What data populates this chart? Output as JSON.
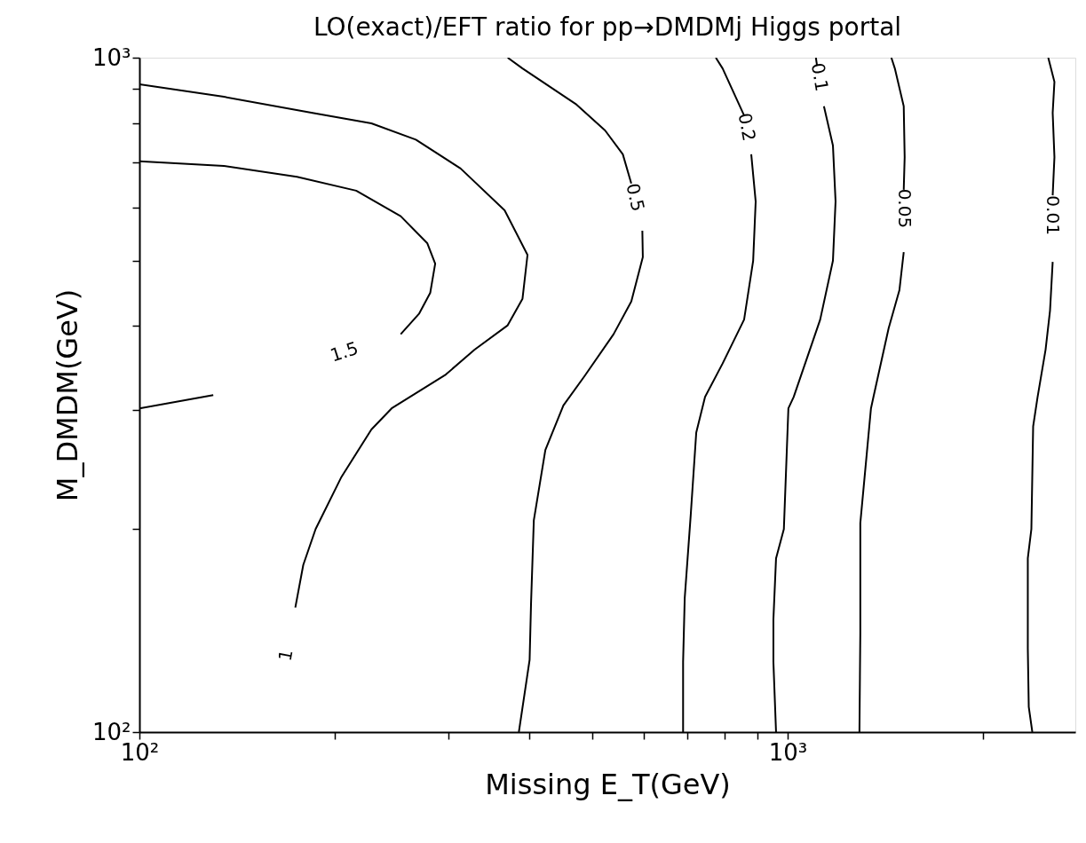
{
  "chart_data": {
    "type": "line",
    "title": "LO(exact)/EFT ratio for pp→DMDMj Higgs portal",
    "xlabel": "Missing E_T(GeV)",
    "ylabel": "M_DMDM(GeV)",
    "log": "xy",
    "grid": false,
    "legend": false,
    "marker": "none",
    "line_style": "solid",
    "xlim": [
      100,
      2780
    ],
    "ylim": [
      100,
      1000
    ],
    "xticks": [
      {
        "value": 100,
        "label": "10²"
      },
      {
        "value": 200,
        "label": null
      },
      {
        "value": 300,
        "label": null
      },
      {
        "value": 400,
        "label": null
      },
      {
        "value": 500,
        "label": null
      },
      {
        "value": 600,
        "label": null
      },
      {
        "value": 700,
        "label": null
      },
      {
        "value": 800,
        "label": null
      },
      {
        "value": 900,
        "label": null
      },
      {
        "value": 1000,
        "label": "10³"
      },
      {
        "value": 2000,
        "label": null
      }
    ],
    "yticks": [
      {
        "value": 100,
        "label": "10²"
      },
      {
        "value": 200,
        "label": null
      },
      {
        "value": 300,
        "label": null
      },
      {
        "value": 400,
        "label": null
      },
      {
        "value": 500,
        "label": null
      },
      {
        "value": 600,
        "label": null
      },
      {
        "value": 700,
        "label": null
      },
      {
        "value": 800,
        "label": null
      },
      {
        "value": 900,
        "label": null
      },
      {
        "value": 1000,
        "label": "10³"
      }
    ],
    "series": [
      {
        "name": "1.5",
        "color": "#000000",
        "x": [
          100,
          135,
          175,
          216,
          253,
          278,
          286,
          281,
          270,
          253,
          null,
          130,
          100
        ],
        "values": [
          702,
          691,
          666,
          635,
          582,
          531,
          495,
          448,
          417,
          389,
          null,
          316,
          302
        ]
      },
      {
        "name": "1",
        "color": "#000000",
        "x": [
          100,
          135,
          185,
          228,
          267,
          313,
          366,
          397,
          390,
          370,
          329,
          297,
          245,
          228,
          205,
          187,
          179,
          174
        ],
        "values": [
          913,
          875,
          828,
          799,
          756,
          685,
          594,
          510,
          439,
          401,
          369,
          339,
          302,
          281,
          239,
          200,
          177,
          153
        ]
      },
      {
        "name": "0.5",
        "color": "#000000",
        "x": [
          370,
          390,
          471,
          523,
          557,
          574,
          null,
          597,
          598,
          574,
          539,
          486,
          451,
          423,
          406,
          402,
          400,
          385
        ],
        "values": [
          1000,
          964,
          854,
          780,
          719,
          651,
          null,
          554,
          506,
          435,
          389,
          337,
          305,
          262,
          206,
          155,
          128,
          100
        ]
      },
      {
        "name": "0.2",
        "color": "#000000",
        "x": [
          775,
          794,
          857,
          null,
          879,
          893,
          885,
          857,
          794,
          746,
          723,
          709,
          694,
          690,
          690
        ],
        "values": [
          1000,
          964,
          821,
          null,
          719,
          612,
          500,
          409,
          352,
          314,
          278,
          210,
          158,
          127,
          100
        ]
      },
      {
        "name": "0.1",
        "color": "#000000",
        "x": [
          1106,
          1110,
          null,
          1138,
          1175,
          1186,
          1175,
          1123,
          1022,
          1003,
          987,
          960,
          951,
          951,
          960
        ],
        "values": [
          1000,
          976,
          null,
          847,
          741,
          612,
          500,
          409,
          314,
          302,
          200,
          181,
          147,
          127,
          100
        ]
      },
      {
        "name": "0.05",
        "color": "#000000",
        "x": [
          1446,
          1464,
          1511,
          1516,
          1511,
          null,
          1511,
          1488,
          1432,
          1357,
          1345,
          1295,
          1295,
          1291
        ],
        "values": [
          1000,
          964,
          847,
          712,
          637,
          null,
          515,
          452,
          397,
          314,
          302,
          204,
          140,
          100
        ]
      },
      {
        "name": "0.01",
        "color": "#000000",
        "x": [
          2525,
          2581,
          2565,
          2581,
          2565,
          null,
          2565,
          2541,
          2501,
          2431,
          2393,
          2378,
          2348,
          2348,
          2356,
          2386
        ],
        "values": [
          1000,
          921,
          828,
          712,
          625,
          null,
          498,
          422,
          369,
          314,
          284,
          200,
          181,
          133,
          109,
          100
        ]
      }
    ]
  }
}
